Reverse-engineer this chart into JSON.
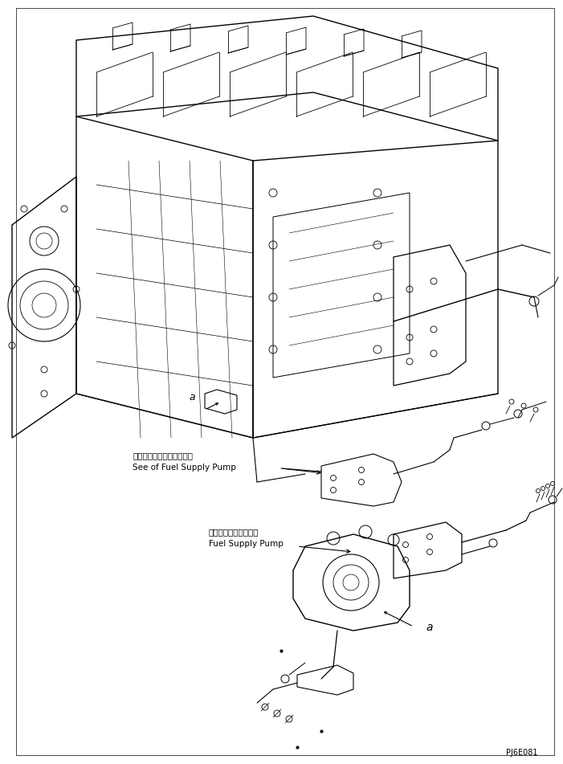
{
  "title": "",
  "background_color": "#ffffff",
  "line_color": "#000000",
  "text_color": "#000000",
  "annotation1_jp": "フェルサプライポンプ参照",
  "annotation1_en": "See of Fuel Supply Pump",
  "annotation2_jp": "フェルサプライポンプ",
  "annotation2_en": "Fuel Supply Pump",
  "label_a1": "a",
  "label_a2": "a",
  "part_code": "PJ6E081",
  "figsize": [
    7.01,
    9.51
  ],
  "dpi": 100
}
